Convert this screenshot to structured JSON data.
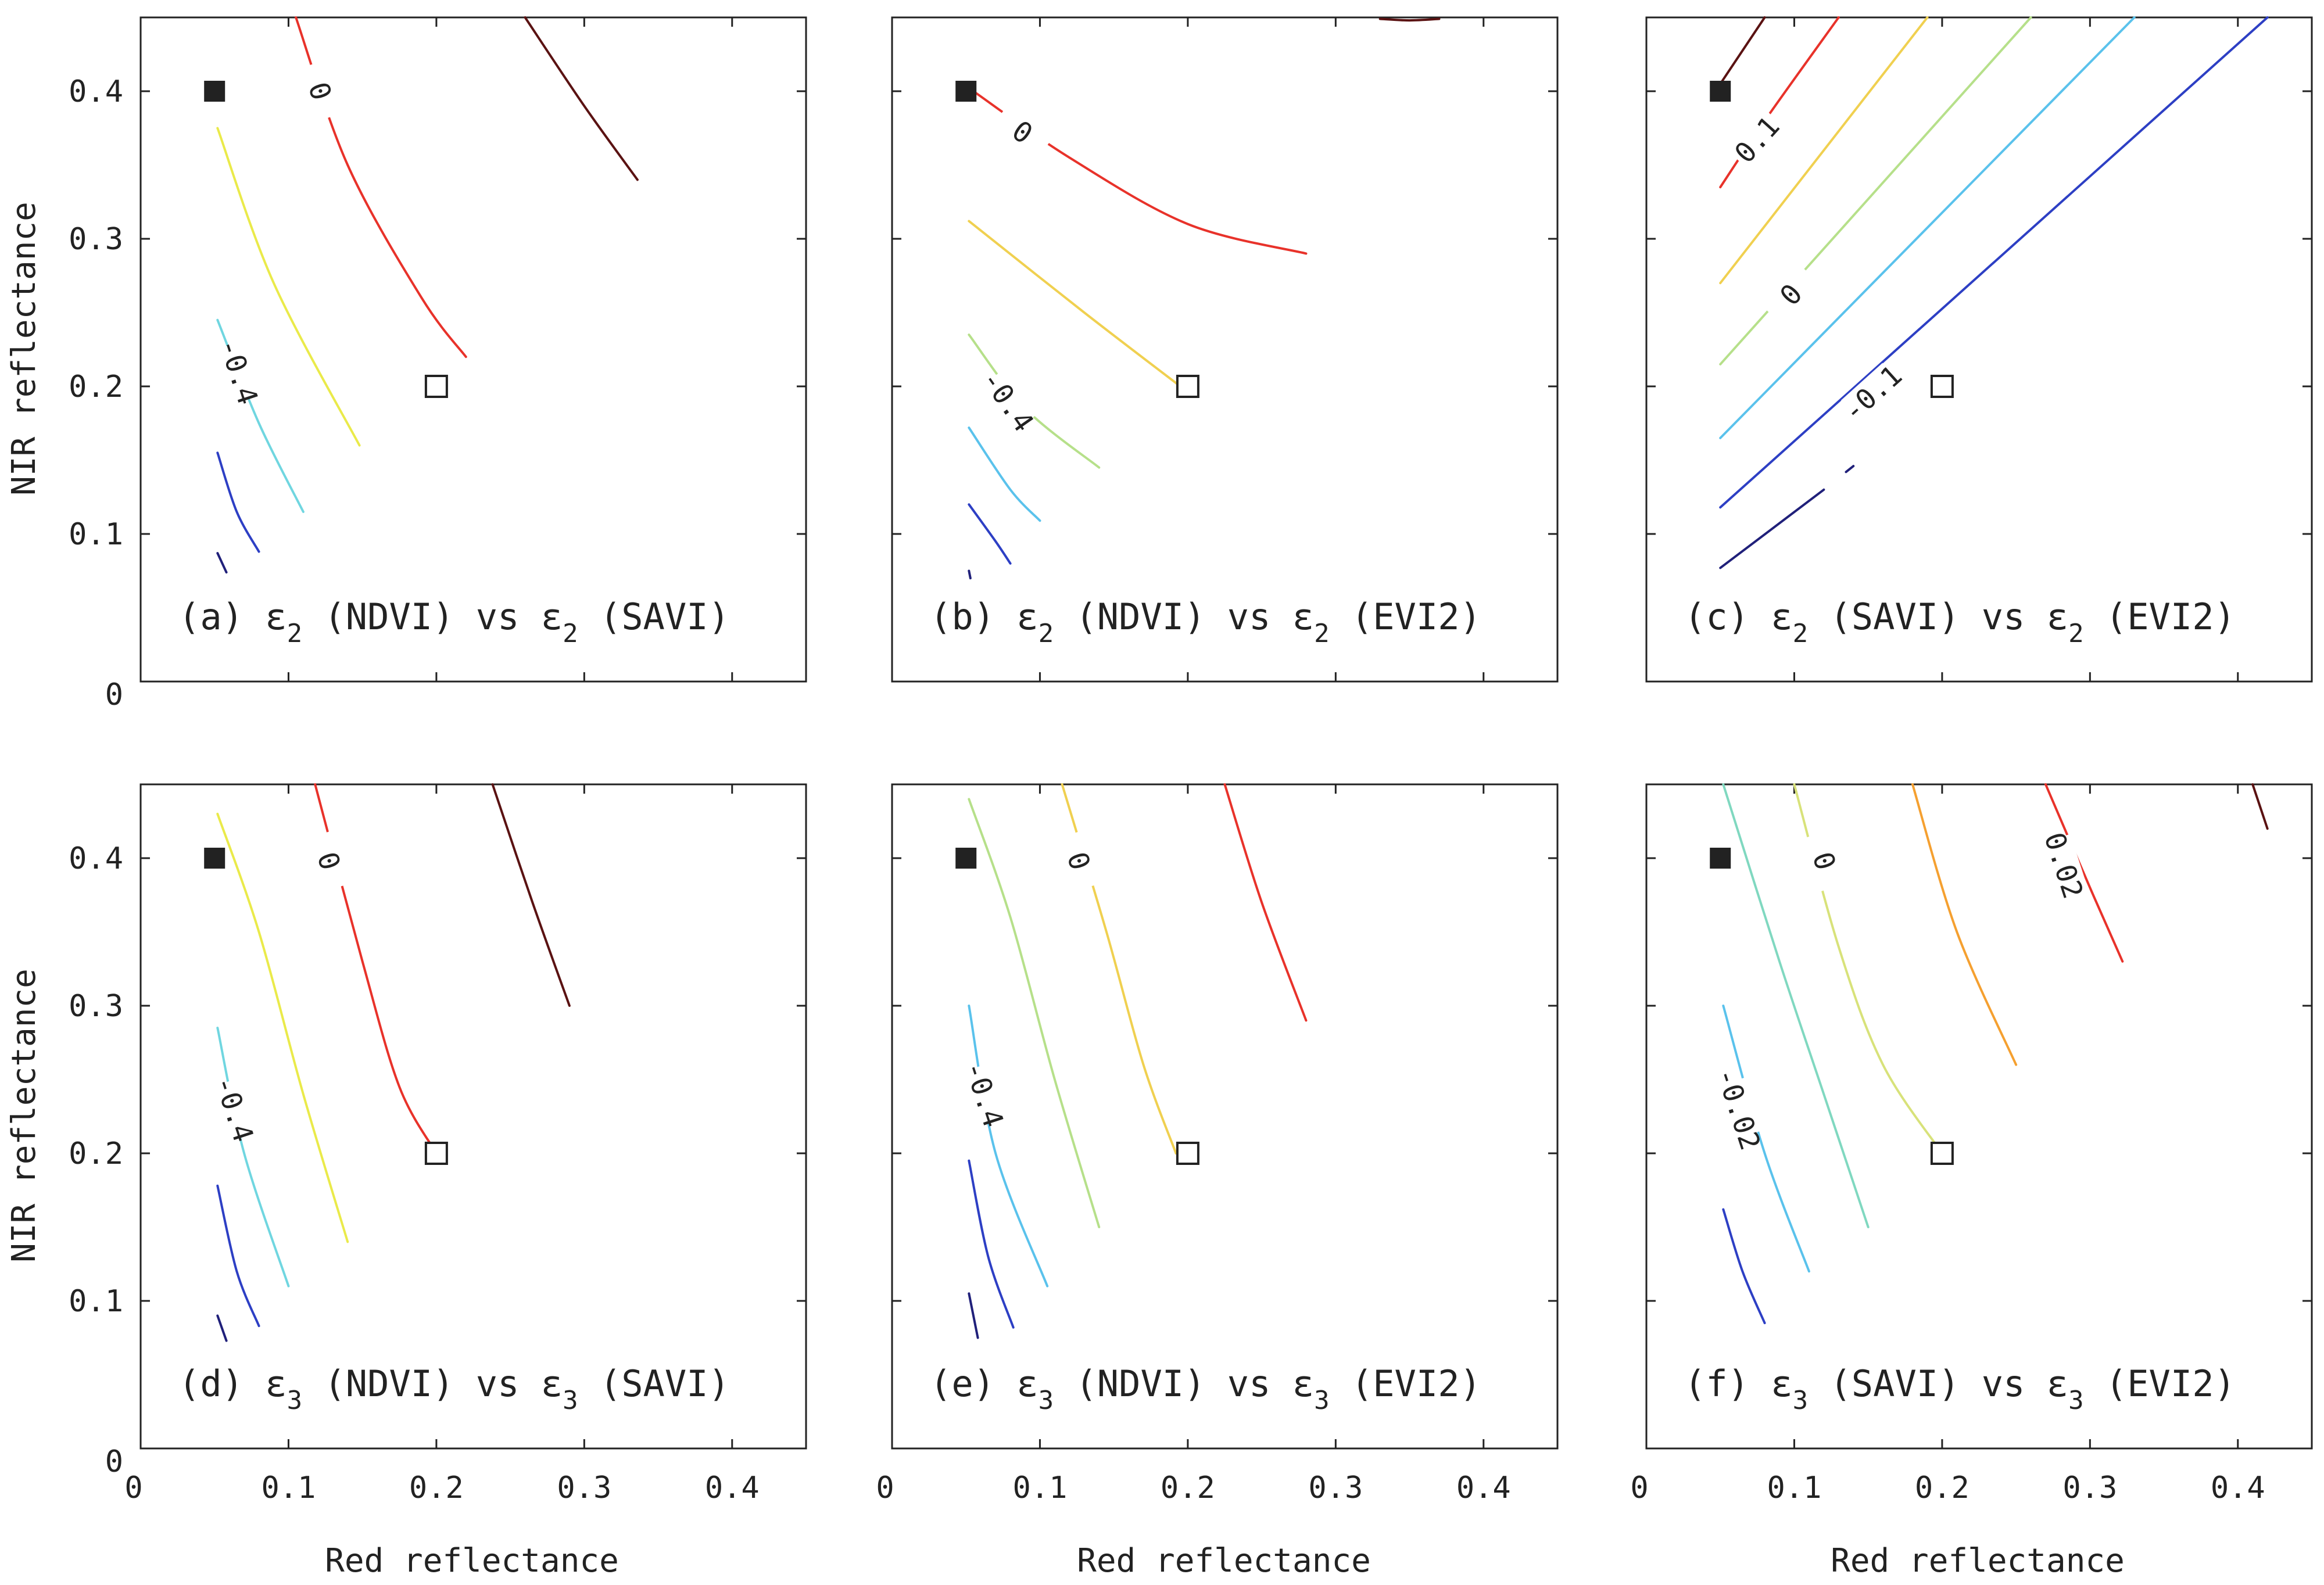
{
  "figure": {
    "x_axis_label": "Red reflectance",
    "y_axis_label": "NIR reflectance",
    "x_ticks": [
      "0",
      "0.1",
      "0.2",
      "0.3",
      "0.4"
    ],
    "y_ticks": [
      "0",
      "0.1",
      "0.2",
      "0.3",
      "0.4"
    ]
  },
  "chart_data": [
    {
      "type": "contour",
      "panel_id": "a",
      "caption": {
        "prefix": "(a)",
        "eps1": "ε",
        "sub1": "2",
        "mid": "(NDVI) vs",
        "eps2": "ε",
        "sub2": "2",
        "suffix": "(SAVI)"
      },
      "xlim": [
        0,
        0.45
      ],
      "ylim": [
        0,
        0.45
      ],
      "markers": {
        "filled_square": [
          0.05,
          0.4
        ],
        "open_square": [
          0.2,
          0.2
        ]
      },
      "contours": [
        {
          "color": "#5a1212",
          "points": [
            [
              0.26,
              0.45
            ],
            [
              0.3,
              0.39
            ],
            [
              0.336,
              0.34
            ]
          ]
        },
        {
          "color": "#e8322a",
          "points": [
            [
              0.105,
              0.45
            ],
            [
              0.14,
              0.35
            ],
            [
              0.19,
              0.26
            ],
            [
              0.22,
              0.22
            ]
          ],
          "label": "0",
          "label_at": [
            0.121,
            0.4
          ],
          "label_angle": 72
        },
        {
          "color": "#eaea4a",
          "points": [
            [
              0.052,
              0.375
            ],
            [
              0.09,
              0.27
            ],
            [
              0.148,
              0.16
            ]
          ]
        },
        {
          "color": "#70d6e0",
          "points": [
            [
              0.052,
              0.245
            ],
            [
              0.08,
              0.175
            ],
            [
              0.11,
              0.115
            ]
          ],
          "label": "-0.4",
          "label_at": [
            0.066,
            0.21
          ],
          "label_angle": 72
        },
        {
          "color": "#2d3fc4",
          "points": [
            [
              0.052,
              0.155
            ],
            [
              0.065,
              0.115
            ],
            [
              0.08,
              0.088
            ]
          ]
        },
        {
          "color": "#20207a",
          "points": [
            [
              0.052,
              0.087
            ],
            [
              0.058,
              0.074
            ]
          ]
        }
      ]
    },
    {
      "type": "contour",
      "panel_id": "b",
      "caption": {
        "prefix": "(b)",
        "eps1": "ε",
        "sub1": "2",
        "mid": "(NDVI) vs",
        "eps2": "ε",
        "sub2": "2",
        "suffix": "(EVI2)"
      },
      "xlim": [
        0,
        0.45
      ],
      "ylim": [
        0,
        0.45
      ],
      "markers": {
        "filled_square": [
          0.05,
          0.4
        ],
        "open_square": [
          0.2,
          0.2
        ]
      },
      "contours": [
        {
          "color": "#5a1212",
          "points": [
            [
              0.33,
              0.449
            ],
            [
              0.35,
              0.448
            ],
            [
              0.37,
              0.449
            ]
          ]
        },
        {
          "color": "#e8322a",
          "points": [
            [
              0.055,
              0.4
            ],
            [
              0.12,
              0.355
            ],
            [
              0.2,
              0.31
            ],
            [
              0.28,
              0.29
            ]
          ],
          "label": "0",
          "label_at": [
            0.088,
            0.372
          ],
          "label_angle": 35
        },
        {
          "color": "#f0d050",
          "points": [
            [
              0.052,
              0.312
            ],
            [
              0.13,
              0.25
            ],
            [
              0.195,
              0.2
            ]
          ]
        },
        {
          "color": "#b6e08a",
          "points": [
            [
              0.052,
              0.235
            ],
            [
              0.09,
              0.185
            ],
            [
              0.14,
              0.145
            ]
          ],
          "label": "-0.4",
          "label_at": [
            0.078,
            0.19
          ],
          "label_angle": 55
        },
        {
          "color": "#5ac2ec",
          "points": [
            [
              0.052,
              0.172
            ],
            [
              0.08,
              0.13
            ],
            [
              0.1,
              0.109
            ]
          ]
        },
        {
          "color": "#2d3fc4",
          "points": [
            [
              0.052,
              0.12
            ],
            [
              0.07,
              0.095
            ],
            [
              0.08,
              0.08
            ]
          ]
        },
        {
          "color": "#20207a",
          "points": [
            [
              0.052,
              0.075
            ],
            [
              0.053,
              0.07
            ]
          ]
        }
      ]
    },
    {
      "type": "contour",
      "panel_id": "c",
      "caption": {
        "prefix": "(c)",
        "eps1": "ε",
        "sub1": "2",
        "mid": "(SAVI) vs",
        "eps2": "ε",
        "sub2": "2",
        "suffix": "(EVI2)"
      },
      "xlim": [
        0,
        0.45
      ],
      "ylim": [
        0,
        0.45
      ],
      "markers": {
        "filled_square": [
          0.05,
          0.4
        ],
        "open_square": [
          0.2,
          0.2
        ]
      },
      "contours": [
        {
          "color": "#5a1212",
          "points": [
            [
              0.05,
              0.405
            ],
            [
              0.08,
              0.45
            ]
          ]
        },
        {
          "color": "#e8322a",
          "points": [
            [
              0.05,
              0.335
            ],
            [
              0.08,
              0.38
            ],
            [
              0.13,
              0.45
            ]
          ],
          "label": "0.1",
          "label_at": [
            0.075,
            0.367
          ],
          "label_angle": -48
        },
        {
          "color": "#f0d050",
          "points": [
            [
              0.05,
              0.27
            ],
            [
              0.19,
              0.45
            ]
          ]
        },
        {
          "color": "#b6e08a",
          "points": [
            [
              0.05,
              0.215
            ],
            [
              0.26,
              0.45
            ]
          ],
          "label": "0",
          "label_at": [
            0.098,
            0.262
          ],
          "label_angle": -48
        },
        {
          "color": "#5ac2ec",
          "points": [
            [
              0.05,
              0.165
            ],
            [
              0.33,
              0.45
            ]
          ]
        },
        {
          "color": "#2d3fc4",
          "points": [
            [
              0.05,
              0.118
            ],
            [
              0.42,
              0.45
            ]
          ],
          "label": "-0.1",
          "label_at": [
            0.153,
            0.195
          ],
          "label_angle": -42
        },
        {
          "color": "#20207a",
          "points": [
            [
              0.05,
              0.077
            ],
            [
              0.12,
              0.13
            ]
          ]
        },
        {
          "color": "#20207a",
          "points": [
            [
              0.135,
              0.142
            ],
            [
              0.14,
              0.146
            ]
          ]
        }
      ]
    },
    {
      "type": "contour",
      "panel_id": "d",
      "caption": {
        "prefix": "(d)",
        "eps1": "ε",
        "sub1": "3",
        "mid": "(NDVI) vs",
        "eps2": "ε",
        "sub2": "3",
        "suffix": "(SAVI)"
      },
      "xlim": [
        0,
        0.45
      ],
      "ylim": [
        0,
        0.45
      ],
      "markers": {
        "filled_square": [
          0.05,
          0.4
        ],
        "open_square": [
          0.2,
          0.2
        ]
      },
      "contours": [
        {
          "color": "#5a1212",
          "points": [
            [
              0.238,
              0.45
            ],
            [
              0.265,
              0.37
            ],
            [
              0.29,
              0.3
            ]
          ]
        },
        {
          "color": "#e8322a",
          "points": [
            [
              0.118,
              0.45
            ],
            [
              0.15,
              0.33
            ],
            [
              0.175,
              0.245
            ],
            [
              0.2,
              0.2
            ]
          ],
          "label": "0",
          "label_at": [
            0.127,
            0.398
          ],
          "label_angle": 72
        },
        {
          "color": "#eaea4a",
          "points": [
            [
              0.052,
              0.43
            ],
            [
              0.08,
              0.35
            ],
            [
              0.11,
              0.24
            ],
            [
              0.14,
              0.14
            ]
          ]
        },
        {
          "color": "#70d6e0",
          "points": [
            [
              0.052,
              0.285
            ],
            [
              0.07,
              0.2
            ],
            [
              0.1,
              0.11
            ]
          ],
          "label": "-0.4",
          "label_at": [
            0.063,
            0.23
          ],
          "label_angle": 72
        },
        {
          "color": "#2d3fc4",
          "points": [
            [
              0.052,
              0.178
            ],
            [
              0.065,
              0.12
            ],
            [
              0.08,
              0.083
            ]
          ]
        },
        {
          "color": "#20207a",
          "points": [
            [
              0.052,
              0.09
            ],
            [
              0.058,
              0.073
            ]
          ]
        }
      ]
    },
    {
      "type": "contour",
      "panel_id": "e",
      "caption": {
        "prefix": "(e)",
        "eps1": "ε",
        "sub1": "3",
        "mid": "(NDVI) vs",
        "eps2": "ε",
        "sub2": "3",
        "suffix": "(EVI2)"
      },
      "xlim": [
        0,
        0.45
      ],
      "ylim": [
        0,
        0.45
      ],
      "markers": {
        "filled_square": [
          0.05,
          0.4
        ],
        "open_square": [
          0.2,
          0.2
        ]
      },
      "contours": [
        {
          "color": "#e8322a",
          "points": [
            [
              0.225,
              0.45
            ],
            [
              0.25,
              0.37
            ],
            [
              0.28,
              0.29
            ]
          ]
        },
        {
          "color": "#f0d050",
          "points": [
            [
              0.115,
              0.45
            ],
            [
              0.145,
              0.35
            ],
            [
              0.17,
              0.26
            ],
            [
              0.192,
              0.2
            ]
          ],
          "label": "0",
          "label_at": [
            0.126,
            0.398
          ],
          "label_angle": 72
        },
        {
          "color": "#b6e08a",
          "points": [
            [
              0.052,
              0.44
            ],
            [
              0.08,
              0.36
            ],
            [
              0.11,
              0.25
            ],
            [
              0.14,
              0.15
            ]
          ]
        },
        {
          "color": "#5ac2ec",
          "points": [
            [
              0.052,
              0.3
            ],
            [
              0.07,
              0.2
            ],
            [
              0.105,
              0.11
            ]
          ],
          "label": "-0.4",
          "label_at": [
            0.062,
            0.24
          ],
          "label_angle": 72
        },
        {
          "color": "#2d3fc4",
          "points": [
            [
              0.052,
              0.195
            ],
            [
              0.065,
              0.13
            ],
            [
              0.082,
              0.082
            ]
          ]
        },
        {
          "color": "#20207a",
          "points": [
            [
              0.052,
              0.105
            ],
            [
              0.058,
              0.075
            ]
          ]
        }
      ]
    },
    {
      "type": "contour",
      "panel_id": "f",
      "caption": {
        "prefix": "(f)",
        "eps1": "ε",
        "sub1": "3",
        "mid": "(SAVI) vs",
        "eps2": "ε",
        "sub2": "3",
        "suffix": "(EVI2)"
      },
      "xlim": [
        0,
        0.45
      ],
      "ylim": [
        0,
        0.45
      ],
      "markers": {
        "filled_square": [
          0.05,
          0.4
        ],
        "open_square": [
          0.2,
          0.2
        ]
      },
      "contours": [
        {
          "color": "#5a1212",
          "points": [
            [
              0.41,
              0.45
            ],
            [
              0.42,
              0.42
            ]
          ]
        },
        {
          "color": "#e8322a",
          "points": [
            [
              0.27,
              0.45
            ],
            [
              0.3,
              0.38
            ],
            [
              0.322,
              0.33
            ]
          ],
          "label": "0.02",
          "label_at": [
            0.282,
            0.395
          ],
          "label_angle": 72
        },
        {
          "color": "#f5a030",
          "points": [
            [
              0.18,
              0.45
            ],
            [
              0.21,
              0.35
            ],
            [
              0.25,
              0.26
            ]
          ]
        },
        {
          "color": "#d8e27a",
          "points": [
            [
              0.1,
              0.45
            ],
            [
              0.13,
              0.34
            ],
            [
              0.16,
              0.26
            ],
            [
              0.2,
              0.2
            ]
          ],
          "label": "0",
          "label_at": [
            0.12,
            0.398
          ],
          "label_angle": 72
        },
        {
          "color": "#80d8c0",
          "points": [
            [
              0.052,
              0.45
            ],
            [
              0.09,
              0.33
            ],
            [
              0.12,
              0.24
            ],
            [
              0.15,
              0.15
            ]
          ]
        },
        {
          "color": "#5ac2ec",
          "points": [
            [
              0.052,
              0.3
            ],
            [
              0.08,
              0.2
            ],
            [
              0.11,
              0.12
            ]
          ],
          "label": "-0.02",
          "label_at": [
            0.062,
            0.23
          ],
          "label_angle": 72
        },
        {
          "color": "#2d3fc4",
          "points": [
            [
              0.052,
              0.162
            ],
            [
              0.065,
              0.12
            ],
            [
              0.08,
              0.085
            ]
          ]
        }
      ]
    }
  ]
}
